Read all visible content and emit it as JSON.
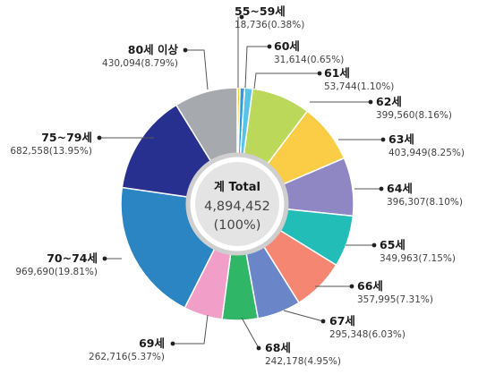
{
  "chart_data": {
    "type": "pie",
    "center": {
      "title": "계 Total",
      "total": "4,894,452",
      "percent": "(100%)"
    },
    "slices": [
      {
        "label": "55~59세",
        "value": 18736,
        "value_text": "18,736(0.38%)",
        "percent": 0.38,
        "color": "#f2d43a"
      },
      {
        "label": "60세",
        "value": 31614,
        "value_text": "31,614(0.65%)",
        "percent": 0.65,
        "color": "#2e9bd6"
      },
      {
        "label": "61세",
        "value": 53744,
        "value_text": "53,744(1.10%)",
        "percent": 1.1,
        "color": "#56c3e8"
      },
      {
        "label": "62세",
        "value": 399560,
        "value_text": "399,560(8.16%)",
        "percent": 8.16,
        "color": "#bcd85a"
      },
      {
        "label": "63세",
        "value": 403949,
        "value_text": "403,949(8.25%)",
        "percent": 8.25,
        "color": "#fbcd46"
      },
      {
        "label": "64세",
        "value": 396307,
        "value_text": "396,307(8.10%)",
        "percent": 8.1,
        "color": "#8f86c4"
      },
      {
        "label": "65세",
        "value": 349963,
        "value_text": "349,963(7.15%)",
        "percent": 7.15,
        "color": "#22bdb7"
      },
      {
        "label": "66세",
        "value": 357995,
        "value_text": "357,995(7.31%)",
        "percent": 7.31,
        "color": "#f58672"
      },
      {
        "label": "67세",
        "value": 295348,
        "value_text": "295,348(6.03%)",
        "percent": 6.03,
        "color": "#6a86c8"
      },
      {
        "label": "68세",
        "value": 242178,
        "value_text": "242,178(4.95%)",
        "percent": 4.95,
        "color": "#2fb667"
      },
      {
        "label": "69세",
        "value": 262716,
        "value_text": "262,716(5.37%)",
        "percent": 5.37,
        "color": "#f19ec8"
      },
      {
        "label": "70~74세",
        "value": 969690,
        "value_text": "969,690(19.81%)",
        "percent": 19.81,
        "color": "#2b85c2"
      },
      {
        "label": "75~79세",
        "value": 682558,
        "value_text": "682,558(13.95%)",
        "percent": 13.95,
        "color": "#27308e"
      },
      {
        "label": "80세 이상",
        "value": 430094,
        "value_text": "430,094(8.79%)",
        "percent": 8.79,
        "color": "#a6a9ae"
      }
    ]
  }
}
